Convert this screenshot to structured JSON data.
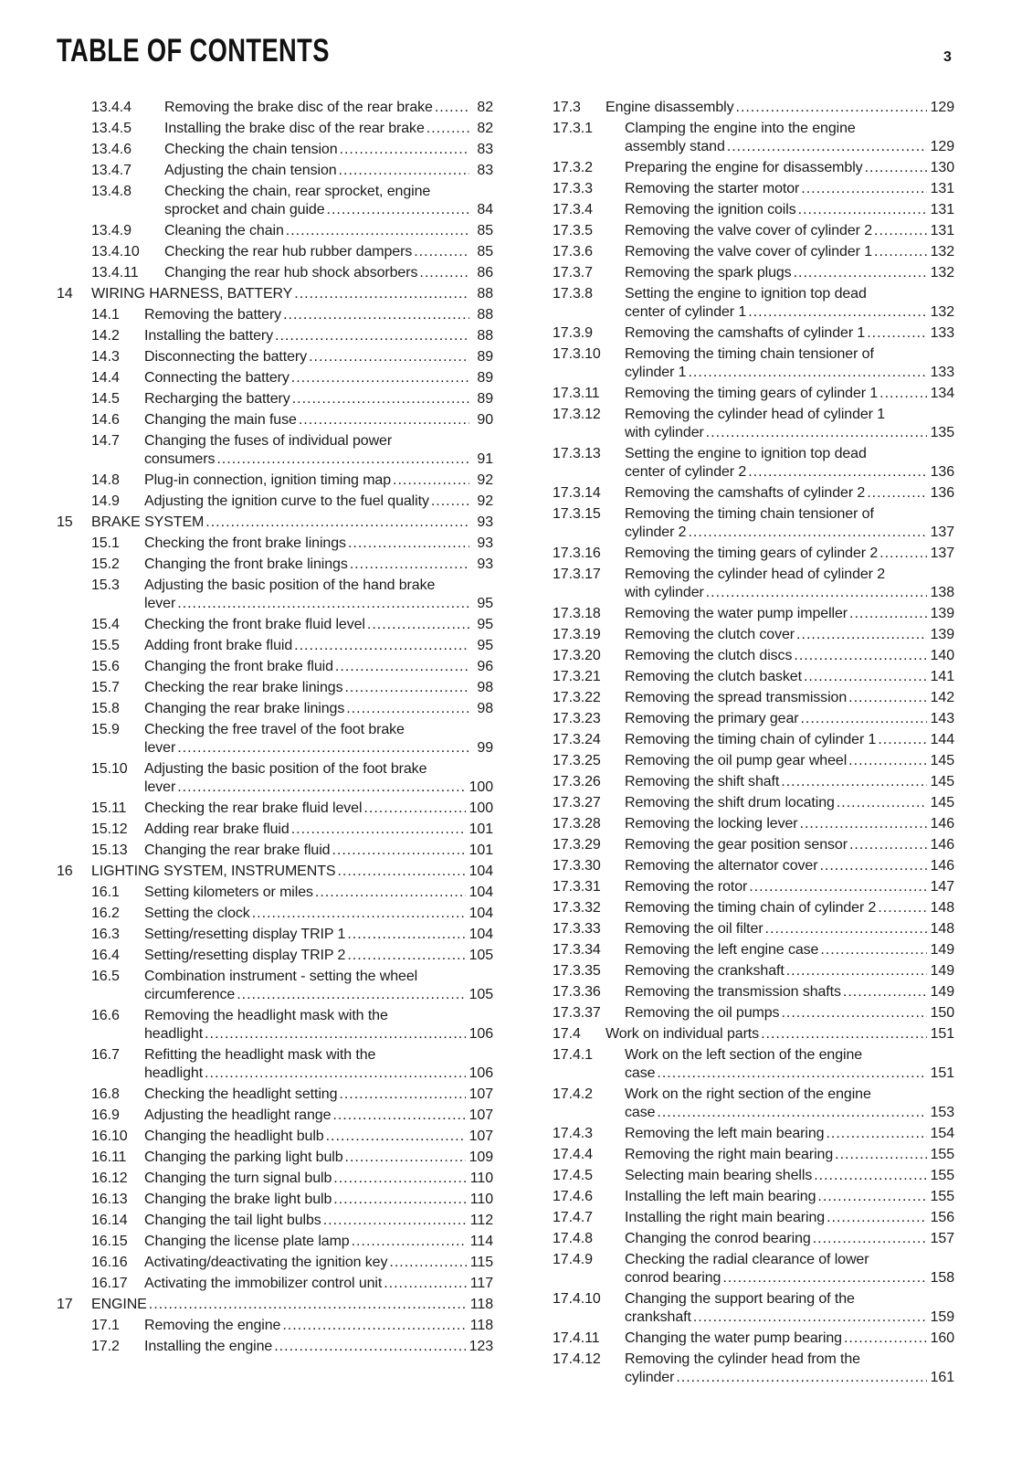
{
  "header": {
    "title": "TABLE OF CONTENTS",
    "page_number": "3"
  },
  "left": [
    {
      "level": 3,
      "num": "13.4.4",
      "title": "Removing the brake disc of the rear brake",
      "page": "82"
    },
    {
      "level": 3,
      "num": "13.4.5",
      "title": "Installing the brake disc of the rear brake",
      "page": "82"
    },
    {
      "level": 3,
      "num": "13.4.6",
      "title": "Checking the chain tension",
      "page": "83"
    },
    {
      "level": 3,
      "num": "13.4.7",
      "title": "Adjusting the chain tension",
      "page": "83"
    },
    {
      "level": 3,
      "num": "13.4.8",
      "title": "Checking the chain, rear sprocket, engine",
      "title2": "sprocket and chain guide",
      "page": "84"
    },
    {
      "level": 3,
      "num": "13.4.9",
      "title": "Cleaning the chain",
      "page": "85"
    },
    {
      "level": 3,
      "num": "13.4.10",
      "title": "Checking the rear hub rubber dampers",
      "page": "85"
    },
    {
      "level": 3,
      "num": "13.4.11",
      "title": "Changing the rear hub shock absorbers",
      "page": "86"
    },
    {
      "level": 1,
      "num": "14",
      "title": "WIRING HARNESS, BATTERY",
      "page": "88"
    },
    {
      "level": 2,
      "num": "14.1",
      "title": "Removing the battery",
      "page": "88"
    },
    {
      "level": 2,
      "num": "14.2",
      "title": "Installing the battery",
      "page": "88"
    },
    {
      "level": 2,
      "num": "14.3",
      "title": "Disconnecting the battery",
      "page": "89"
    },
    {
      "level": 2,
      "num": "14.4",
      "title": "Connecting the battery",
      "page": "89"
    },
    {
      "level": 2,
      "num": "14.5",
      "title": "Recharging the battery",
      "page": "89"
    },
    {
      "level": 2,
      "num": "14.6",
      "title": "Changing the main fuse",
      "page": "90"
    },
    {
      "level": 2,
      "num": "14.7",
      "title": "Changing the fuses of individual power",
      "title2": "consumers",
      "page": "91"
    },
    {
      "level": 2,
      "num": "14.8",
      "title": "Plug-in connection, ignition timing map",
      "page": "92"
    },
    {
      "level": 2,
      "num": "14.9",
      "title": "Adjusting the ignition curve to the fuel quality",
      "page": "92"
    },
    {
      "level": 1,
      "num": "15",
      "title": "BRAKE SYSTEM",
      "page": "93"
    },
    {
      "level": 2,
      "num": "15.1",
      "title": "Checking the front brake linings",
      "page": "93"
    },
    {
      "level": 2,
      "num": "15.2",
      "title": "Changing the front brake linings",
      "page": "93"
    },
    {
      "level": 2,
      "num": "15.3",
      "title": "Adjusting the basic position of the hand brake",
      "title2": "lever",
      "page": "95"
    },
    {
      "level": 2,
      "num": "15.4",
      "title": "Checking the front brake fluid level",
      "page": "95"
    },
    {
      "level": 2,
      "num": "15.5",
      "title": "Adding front brake fluid",
      "page": "95"
    },
    {
      "level": 2,
      "num": "15.6",
      "title": "Changing the front brake fluid",
      "page": "96"
    },
    {
      "level": 2,
      "num": "15.7",
      "title": "Checking the rear brake linings",
      "page": "98"
    },
    {
      "level": 2,
      "num": "15.8",
      "title": "Changing the rear brake linings",
      "page": "98"
    },
    {
      "level": 2,
      "num": "15.9",
      "title": "Checking the free travel of the foot brake",
      "title2": "lever",
      "page": "99"
    },
    {
      "level": 2,
      "num": "15.10",
      "title": "Adjusting the basic position of the foot brake",
      "title2": "lever",
      "page": "100"
    },
    {
      "level": 2,
      "num": "15.11",
      "title": "Checking the rear brake fluid level",
      "page": "100"
    },
    {
      "level": 2,
      "num": "15.12",
      "title": "Adding rear brake fluid",
      "page": "101"
    },
    {
      "level": 2,
      "num": "15.13",
      "title": "Changing the rear brake fluid",
      "page": "101"
    },
    {
      "level": 1,
      "num": "16",
      "title": "LIGHTING SYSTEM, INSTRUMENTS",
      "page": "104"
    },
    {
      "level": 2,
      "num": "16.1",
      "title": "Setting kilometers or miles",
      "page": "104"
    },
    {
      "level": 2,
      "num": "16.2",
      "title": "Setting the clock",
      "page": "104"
    },
    {
      "level": 2,
      "num": "16.3",
      "title": "Setting/resetting display TRIP 1",
      "page": "104"
    },
    {
      "level": 2,
      "num": "16.4",
      "title": "Setting/resetting display TRIP 2",
      "page": "105"
    },
    {
      "level": 2,
      "num": "16.5",
      "title": "Combination instrument - setting the wheel",
      "title2": "circumference",
      "page": "105"
    },
    {
      "level": 2,
      "num": "16.6",
      "title": "Removing the headlight mask with the",
      "title2": "headlight",
      "page": "106"
    },
    {
      "level": 2,
      "num": "16.7",
      "title": "Refitting the headlight mask with the",
      "title2": "headlight",
      "page": "106"
    },
    {
      "level": 2,
      "num": "16.8",
      "title": "Checking the headlight setting",
      "page": "107"
    },
    {
      "level": 2,
      "num": "16.9",
      "title": "Adjusting the headlight range",
      "page": "107"
    },
    {
      "level": 2,
      "num": "16.10",
      "title": "Changing the headlight bulb",
      "page": "107"
    },
    {
      "level": 2,
      "num": "16.11",
      "title": "Changing the parking light bulb",
      "page": "109"
    },
    {
      "level": 2,
      "num": "16.12",
      "title": "Changing the turn signal bulb",
      "page": "110"
    },
    {
      "level": 2,
      "num": "16.13",
      "title": "Changing the brake light bulb",
      "page": "110"
    },
    {
      "level": 2,
      "num": "16.14",
      "title": "Changing the tail light bulbs",
      "page": "112"
    },
    {
      "level": 2,
      "num": "16.15",
      "title": "Changing the license plate lamp",
      "page": "114"
    },
    {
      "level": 2,
      "num": "16.16",
      "title": "Activating/deactivating the ignition key",
      "page": "115"
    },
    {
      "level": 2,
      "num": "16.17",
      "title": "Activating the immobilizer control unit",
      "page": "117"
    },
    {
      "level": 1,
      "num": "17",
      "title": "ENGINE",
      "page": "118"
    },
    {
      "level": 2,
      "num": "17.1",
      "title": "Removing the engine",
      "page": "118"
    },
    {
      "level": 2,
      "num": "17.2",
      "title": "Installing the engine",
      "page": "123"
    }
  ],
  "right": [
    {
      "level": 2,
      "num": "17.3",
      "title": "Engine disassembly",
      "page": "129"
    },
    {
      "level": 3,
      "num": "17.3.1",
      "title": "Clamping the engine into the engine",
      "title2": "assembly stand",
      "page": "129"
    },
    {
      "level": 3,
      "num": "17.3.2",
      "title": "Preparing the engine for disassembly",
      "page": "130"
    },
    {
      "level": 3,
      "num": "17.3.3",
      "title": "Removing the starter motor",
      "page": "131"
    },
    {
      "level": 3,
      "num": "17.3.4",
      "title": "Removing the ignition coils",
      "page": "131"
    },
    {
      "level": 3,
      "num": "17.3.5",
      "title": "Removing the valve cover of cylinder 2",
      "page": "131"
    },
    {
      "level": 3,
      "num": "17.3.6",
      "title": "Removing the valve cover of cylinder 1",
      "page": "132"
    },
    {
      "level": 3,
      "num": "17.3.7",
      "title": "Removing the spark plugs",
      "page": "132"
    },
    {
      "level": 3,
      "num": "17.3.8",
      "title": "Setting the engine to ignition top dead",
      "title2": "center of cylinder 1",
      "page": "132"
    },
    {
      "level": 3,
      "num": "17.3.9",
      "title": "Removing the camshafts of cylinder 1",
      "page": "133"
    },
    {
      "level": 3,
      "num": "17.3.10",
      "title": "Removing the timing chain tensioner of",
      "title2": "cylinder 1",
      "page": "133"
    },
    {
      "level": 3,
      "num": "17.3.11",
      "title": "Removing the timing gears of cylinder 1",
      "page": "134"
    },
    {
      "level": 3,
      "num": "17.3.12",
      "title": "Removing the cylinder head of cylinder 1",
      "title2": "with cylinder",
      "page": "135"
    },
    {
      "level": 3,
      "num": "17.3.13",
      "title": "Setting the engine to ignition top dead",
      "title2": "center of cylinder 2",
      "page": "136"
    },
    {
      "level": 3,
      "num": "17.3.14",
      "title": "Removing the camshafts of cylinder 2",
      "page": "136"
    },
    {
      "level": 3,
      "num": "17.3.15",
      "title": "Removing the timing chain tensioner of",
      "title2": "cylinder 2",
      "page": "137"
    },
    {
      "level": 3,
      "num": "17.3.16",
      "title": "Removing the timing gears of cylinder 2",
      "page": "137"
    },
    {
      "level": 3,
      "num": "17.3.17",
      "title": "Removing the cylinder head of cylinder 2",
      "title2": "with cylinder",
      "page": "138"
    },
    {
      "level": 3,
      "num": "17.3.18",
      "title": "Removing the water pump impeller",
      "page": "139"
    },
    {
      "level": 3,
      "num": "17.3.19",
      "title": "Removing the clutch cover",
      "page": "139"
    },
    {
      "level": 3,
      "num": "17.3.20",
      "title": "Removing the clutch discs",
      "page": "140"
    },
    {
      "level": 3,
      "num": "17.3.21",
      "title": "Removing the clutch basket",
      "page": "141"
    },
    {
      "level": 3,
      "num": "17.3.22",
      "title": "Removing the spread transmission",
      "page": "142"
    },
    {
      "level": 3,
      "num": "17.3.23",
      "title": "Removing the primary gear",
      "page": "143"
    },
    {
      "level": 3,
      "num": "17.3.24",
      "title": "Removing the timing chain of cylinder 1",
      "page": "144"
    },
    {
      "level": 3,
      "num": "17.3.25",
      "title": "Removing the oil pump gear wheel",
      "page": "145"
    },
    {
      "level": 3,
      "num": "17.3.26",
      "title": "Removing the shift shaft",
      "page": "145"
    },
    {
      "level": 3,
      "num": "17.3.27",
      "title": "Removing the shift drum locating",
      "page": "145"
    },
    {
      "level": 3,
      "num": "17.3.28",
      "title": "Removing the locking lever",
      "page": "146"
    },
    {
      "level": 3,
      "num": "17.3.29",
      "title": "Removing the gear position sensor",
      "page": "146"
    },
    {
      "level": 3,
      "num": "17.3.30",
      "title": "Removing the alternator cover",
      "page": "146"
    },
    {
      "level": 3,
      "num": "17.3.31",
      "title": "Removing the rotor",
      "page": "147"
    },
    {
      "level": 3,
      "num": "17.3.32",
      "title": "Removing the timing chain of cylinder 2",
      "page": "148"
    },
    {
      "level": 3,
      "num": "17.3.33",
      "title": "Removing the oil filter",
      "page": "148"
    },
    {
      "level": 3,
      "num": "17.3.34",
      "title": "Removing the left engine case",
      "page": "149"
    },
    {
      "level": 3,
      "num": "17.3.35",
      "title": "Removing the crankshaft",
      "page": "149"
    },
    {
      "level": 3,
      "num": "17.3.36",
      "title": "Removing the transmission shafts",
      "page": "149"
    },
    {
      "level": 3,
      "num": "17.3.37",
      "title": "Removing the oil pumps",
      "page": "150"
    },
    {
      "level": 2,
      "num": "17.4",
      "title": "Work on individual parts",
      "page": "151"
    },
    {
      "level": 3,
      "num": "17.4.1",
      "title": "Work on the left section of the engine",
      "title2": "case",
      "page": "151"
    },
    {
      "level": 3,
      "num": "17.4.2",
      "title": "Work on the right section of the engine",
      "title2": "case",
      "page": "153"
    },
    {
      "level": 3,
      "num": "17.4.3",
      "title": "Removing the left main bearing",
      "page": "154"
    },
    {
      "level": 3,
      "num": "17.4.4",
      "title": "Removing the right main bearing",
      "page": "155"
    },
    {
      "level": 3,
      "num": "17.4.5",
      "title": "Selecting main bearing shells",
      "page": "155"
    },
    {
      "level": 3,
      "num": "17.4.6",
      "title": "Installing the left main bearing",
      "page": "155"
    },
    {
      "level": 3,
      "num": "17.4.7",
      "title": "Installing the right main bearing",
      "page": "156"
    },
    {
      "level": 3,
      "num": "17.4.8",
      "title": "Changing the conrod bearing",
      "page": "157"
    },
    {
      "level": 3,
      "num": "17.4.9",
      "title": "Checking the radial clearance of lower",
      "title2": "conrod bearing",
      "page": "158"
    },
    {
      "level": 3,
      "num": "17.4.10",
      "title": "Changing the support bearing of the",
      "title2": "crankshaft",
      "page": "159"
    },
    {
      "level": 3,
      "num": "17.4.11",
      "title": "Changing the water pump bearing",
      "page": "160"
    },
    {
      "level": 3,
      "num": "17.4.12",
      "title": "Removing the cylinder head from the",
      "title2": "cylinder",
      "page": "161"
    }
  ]
}
